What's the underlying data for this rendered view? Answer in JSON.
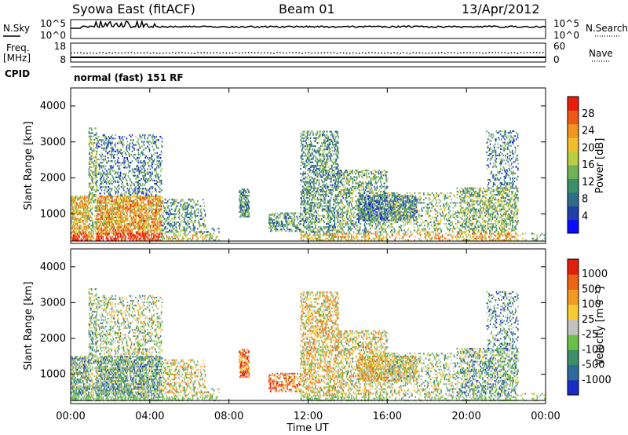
{
  "header": {
    "station": "Syowa East (fitACF)",
    "beam": "Beam 01",
    "date": "13/Apr/2012"
  },
  "summary_panels": {
    "nsky": {
      "left_label": "N.Sky",
      "right_label": "N.Search",
      "left_ticks": [
        "10^5",
        "10^0"
      ],
      "right_ticks": [
        "10^5",
        "10^0"
      ]
    },
    "freq": {
      "left_label_1": "Freq.",
      "left_label_2": "[MHz]",
      "left_ticks": [
        "18",
        "8"
      ],
      "right_label": "Nave",
      "right_ticks": [
        "60",
        "0"
      ]
    },
    "cpid": {
      "label": "CPID",
      "value": "normal (fast) 151 RF"
    }
  },
  "chart_data": [
    {
      "type": "heatmap",
      "name": "power",
      "ylabel": "Slant Range [km]",
      "ylim": [
        180,
        4500
      ],
      "yticks": [
        "1000",
        "2000",
        "3000",
        "4000"
      ],
      "xlim": [
        0,
        24
      ],
      "colorbar": {
        "label": "Power [dB]",
        "range": [
          0,
          30
        ],
        "ticks": [
          "4",
          "8",
          "12",
          "16",
          "20",
          "24",
          "28"
        ],
        "colors": [
          "#0a0aff",
          "#1e3fa8",
          "#2e6e8a",
          "#3b8f6b",
          "#72b257",
          "#b8cc44",
          "#f2bf2c",
          "#f0961e",
          "#ea5a16",
          "#e81d0c"
        ]
      }
    },
    {
      "type": "heatmap",
      "name": "velocity",
      "ylabel": "Slant Range [km]",
      "ylim": [
        180,
        4500
      ],
      "yticks": [
        "1000",
        "2000",
        "3000",
        "4000"
      ],
      "xlim": [
        0,
        24
      ],
      "xlabel": "Time UT",
      "xticks": [
        "00:00",
        "04:00",
        "08:00",
        "12:00",
        "16:00",
        "20:00",
        "00:00"
      ],
      "colorbar": {
        "label": "Velocity [m s⁻¹]",
        "ticks": [
          "1000",
          "500",
          "100",
          "25",
          "-25",
          "-100",
          "-500",
          "-1000"
        ],
        "colors": [
          "#1a2cc8",
          "#2f6a9a",
          "#3e8e6a",
          "#6cc048",
          "#c2c2c2",
          "#f5cc33",
          "#f29a22",
          "#ea6414",
          "#e21e0c"
        ]
      }
    }
  ]
}
